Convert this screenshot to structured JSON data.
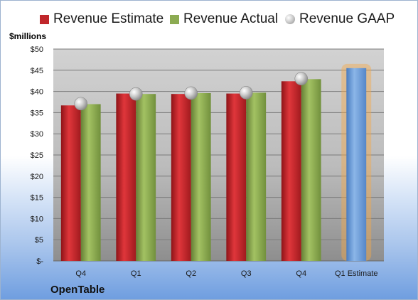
{
  "chart_data": {
    "type": "bar",
    "title": "",
    "ylabel": "$millions",
    "company": "OpenTable",
    "categories": [
      "Q4",
      "Q1",
      "Q2",
      "Q3",
      "Q4",
      "Q1 Estimate"
    ],
    "y_ticks": [
      "$-",
      "$5",
      "$10",
      "$15",
      "$20",
      "$25",
      "$30",
      "$35",
      "$40",
      "$45",
      "$50"
    ],
    "ylim": [
      0,
      50
    ],
    "grid": true,
    "legend_position": "top",
    "series": [
      {
        "name": "Revenue Estimate",
        "type": "bar",
        "color": "#c0262b",
        "values": [
          36.7,
          39.5,
          39.4,
          39.5,
          42.4,
          null
        ]
      },
      {
        "name": "Revenue Actual",
        "type": "bar",
        "color": "#8cab52",
        "values": [
          37.0,
          39.4,
          39.6,
          39.7,
          42.9,
          null
        ]
      },
      {
        "name": "Revenue GAAP",
        "type": "marker",
        "color": "#bdbdbd",
        "values": [
          37.1,
          39.4,
          39.6,
          39.7,
          43.0,
          null
        ]
      },
      {
        "name": "",
        "type": "bar",
        "color": "#6e9fd8",
        "highlight": "#f5a94a",
        "values": [
          null,
          null,
          null,
          null,
          null,
          45.5
        ]
      }
    ]
  }
}
